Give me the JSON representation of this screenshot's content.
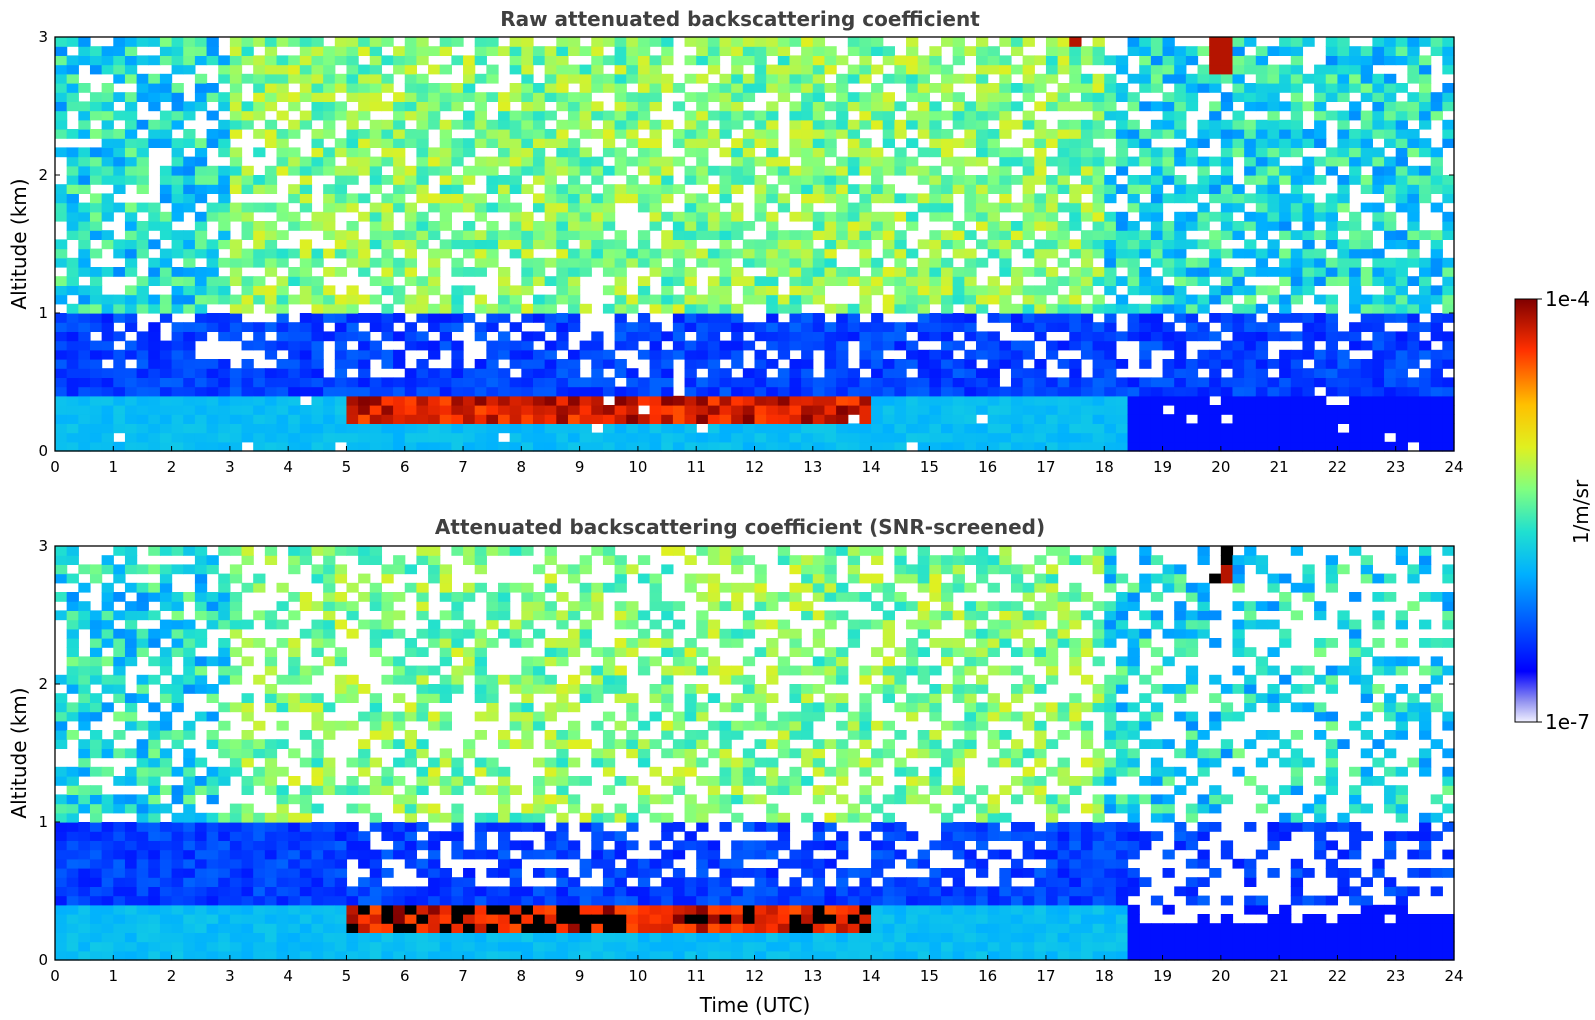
{
  "chart_data": [
    {
      "type": "heatmap",
      "title": "Raw attenuated backscattering coefficient",
      "xlabel": "",
      "ylabel": "Altitude (km)",
      "xlim": [
        0,
        24
      ],
      "ylim": [
        0,
        3
      ],
      "x_ticks": [
        "0",
        "1",
        "2",
        "3",
        "4",
        "5",
        "6",
        "7",
        "8",
        "9",
        "10",
        "11",
        "12",
        "13",
        "14",
        "15",
        "16",
        "17",
        "18",
        "19",
        "20",
        "21",
        "22",
        "23",
        "24"
      ],
      "y_ticks": [
        "0",
        "1",
        "2",
        "3"
      ],
      "color_scale": "log",
      "colorbar_range": [
        "1e-7",
        "1e-4"
      ],
      "colorbar_label": "1/m/sr",
      "colormap": "jet",
      "features": [
        {
          "description": "boundary layer aerosol",
          "time_range": [
            0,
            24
          ],
          "altitude_range": [
            0,
            0.4
          ],
          "value": "~1e-6"
        },
        {
          "description": "cloud base layer",
          "time_range": [
            5,
            14
          ],
          "altitude_range": [
            0.2,
            0.45
          ],
          "value": "~1e-4"
        },
        {
          "description": "high cloud fragments",
          "time_range": [
            17.3,
            17.7
          ],
          "altitude_range": [
            2.9,
            3.0
          ],
          "value": "~1e-4"
        },
        {
          "description": "high cloud fragments",
          "time_range": [
            19.8,
            20.3
          ],
          "altitude_range": [
            2.7,
            3.0
          ],
          "value": "~1e-4"
        }
      ]
    },
    {
      "type": "heatmap",
      "title": "Attenuated backscattering coefficient (SNR-screened)",
      "xlabel": "Time (UTC)",
      "ylabel": "Altitude (km)",
      "xlim": [
        0,
        24
      ],
      "ylim": [
        0,
        3
      ],
      "x_ticks": [
        "0",
        "1",
        "2",
        "3",
        "4",
        "5",
        "6",
        "7",
        "8",
        "9",
        "10",
        "11",
        "12",
        "13",
        "14",
        "15",
        "16",
        "17",
        "18",
        "19",
        "20",
        "21",
        "22",
        "23",
        "24"
      ],
      "y_ticks": [
        "0",
        "1",
        "2",
        "3"
      ],
      "color_scale": "log",
      "colorbar_range": [
        "1e-7",
        "1e-4"
      ],
      "colorbar_label": "1/m/sr",
      "colormap": "jet",
      "features": [
        {
          "description": "boundary layer aerosol",
          "time_range": [
            0,
            24
          ],
          "altitude_range": [
            0,
            0.4
          ],
          "value": "~1e-6"
        },
        {
          "description": "cloud base layer (saturated)",
          "time_range": [
            5,
            14
          ],
          "altitude_range": [
            0.2,
            0.45
          ],
          "value": ">1e-4"
        },
        {
          "description": "screened dense blue layer",
          "time_range": [
            18.4,
            24
          ],
          "altitude_range": [
            0,
            0.3
          ],
          "value": "~5e-7"
        }
      ]
    }
  ],
  "colorbar": {
    "max_label": "1e-4",
    "min_label": "1e-7",
    "unit_label": "1/m/sr"
  }
}
